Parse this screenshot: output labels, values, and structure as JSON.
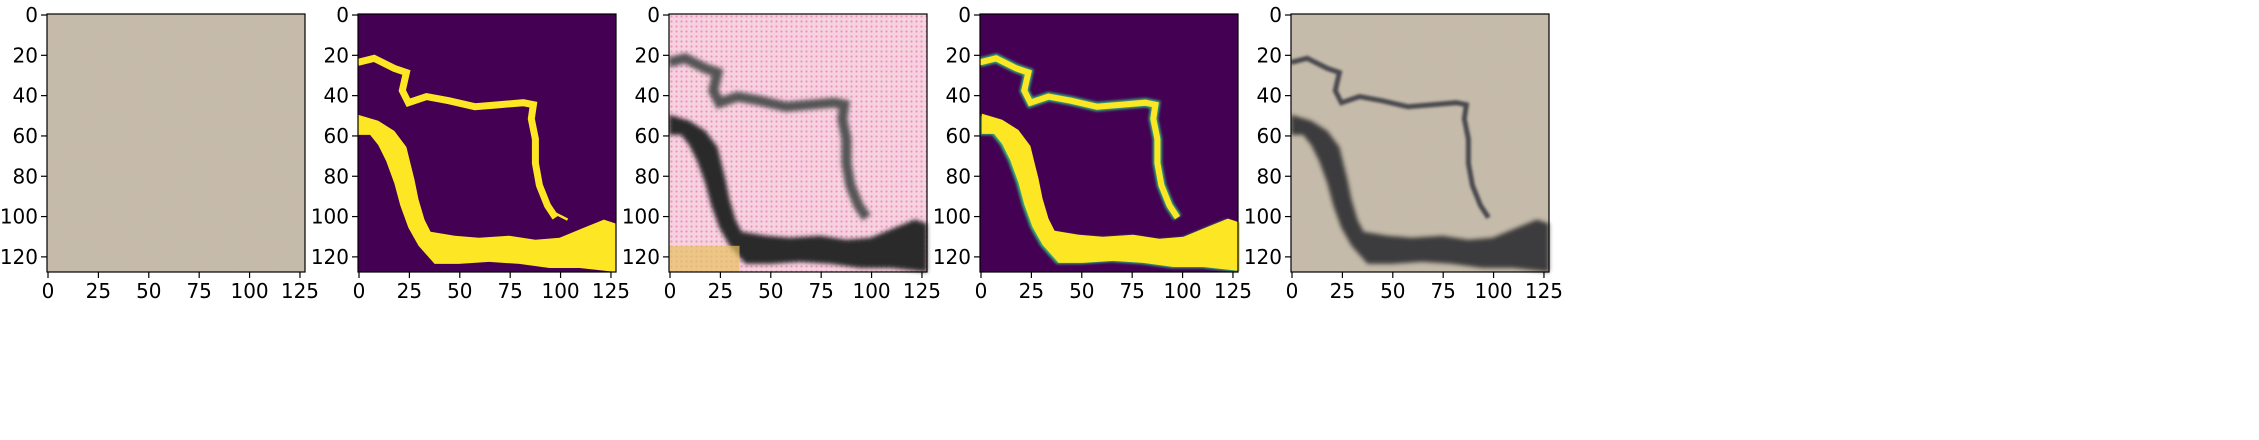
{
  "figure": {
    "panels": [
      {
        "id": "input-texture",
        "kind": "sand"
      },
      {
        "id": "mask-binary",
        "kind": "mask-binary"
      },
      {
        "id": "generated-crack",
        "kind": "generated"
      },
      {
        "id": "mask-predicted",
        "kind": "mask-soft"
      },
      {
        "id": "reconstructed",
        "kind": "sand-crack"
      }
    ],
    "x_ticks": [
      "0",
      "25",
      "50",
      "75",
      "100",
      "125"
    ],
    "y_ticks": [
      "0",
      "20",
      "40",
      "60",
      "80",
      "100",
      "120"
    ],
    "colors": {
      "sand": "#c6bba8",
      "mask_background": "#440154",
      "mask_foreground": "#fde725",
      "mask_edge": "#35b779",
      "generated_pink": "#f0a8c8",
      "crack_dark": "#2a2a2a"
    }
  }
}
